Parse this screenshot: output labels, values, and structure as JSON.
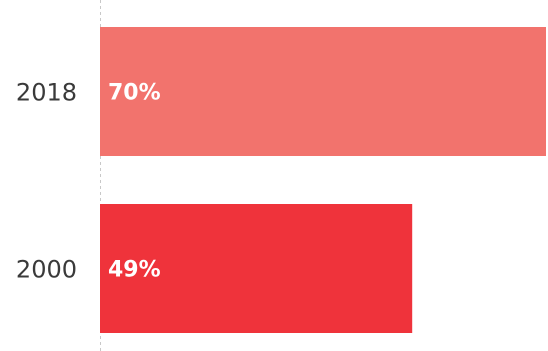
{
  "chart_data": {
    "type": "bar",
    "orientation": "horizontal",
    "categories": [
      "2018",
      "2000"
    ],
    "values": [
      70,
      49
    ],
    "value_labels": [
      "70%",
      "49%"
    ],
    "colors": [
      "#f2736d",
      "#ef333b"
    ],
    "xlim": [
      0,
      70
    ],
    "title": "",
    "xlabel": "",
    "ylabel": "",
    "grid": false,
    "baseline_style": "dashed",
    "baseline_color": "#c8c8c8"
  }
}
